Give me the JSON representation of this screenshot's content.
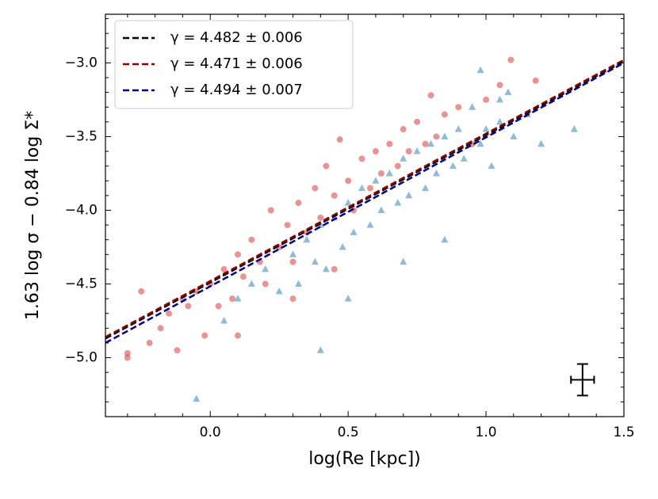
{
  "chart_data": {
    "type": "scatter",
    "xlabel": "log(Re [kpc])",
    "ylabel": "1.63 log σ − 0.84 log Σ*",
    "xlim": [
      -0.38,
      1.5
    ],
    "ylim": [
      -5.4,
      -2.67
    ],
    "xticks": [
      {
        "value": 0,
        "label": "0.0"
      },
      {
        "value": 0.5,
        "label": "0.5"
      },
      {
        "value": 1,
        "label": "1.0"
      },
      {
        "value": 1.5,
        "label": "1.5"
      }
    ],
    "yticks": [
      {
        "value": -3,
        "label": "−3.0"
      },
      {
        "value": -3.5,
        "label": "−3.5"
      },
      {
        "value": -4,
        "label": "−4.0"
      },
      {
        "value": -4.5,
        "label": "−4.5"
      },
      {
        "value": -5,
        "label": "−5.0"
      }
    ],
    "xminor": [
      -0.3,
      -0.2,
      -0.1,
      0.1,
      0.2,
      0.3,
      0.4,
      0.6,
      0.7,
      0.8,
      0.9,
      1.1,
      1.2,
      1.3,
      1.4
    ],
    "yminor": [
      -2.7,
      -2.8,
      -2.9,
      -3.1,
      -3.2,
      -3.3,
      -3.4,
      -3.6,
      -3.7,
      -3.8,
      -3.9,
      -4.1,
      -4.2,
      -4.3,
      -4.4,
      -4.6,
      -4.7,
      -4.8,
      -4.9,
      -5.1,
      -5.2,
      -5.3,
      -5.4
    ],
    "legend": "upper left",
    "series": [
      {
        "color": "#d62728",
        "marker": "circle",
        "x": [
          -0.3,
          -0.3,
          -0.25,
          -0.22,
          -0.18,
          -0.15,
          -0.12,
          -0.1,
          -0.08,
          -0.05,
          -0.02,
          0.0,
          0.03,
          0.05,
          0.08,
          0.1,
          0.12,
          0.15,
          0.18,
          0.2,
          0.22,
          0.25,
          0.28,
          0.3,
          0.32,
          0.35,
          0.38,
          0.4,
          0.42,
          0.45,
          0.47,
          0.5,
          0.52,
          0.55,
          0.58,
          0.6,
          0.62,
          0.65,
          0.68,
          0.7,
          0.72,
          0.75,
          0.78,
          0.8,
          0.82,
          0.85,
          0.9,
          0.95,
          1.0,
          1.05,
          1.09,
          1.18,
          0.3,
          0.45,
          0.1
        ],
        "values": [
          -5.0,
          -4.97,
          -4.55,
          -4.9,
          -4.8,
          -4.7,
          -4.95,
          -4.6,
          -4.65,
          -4.55,
          -4.85,
          -4.5,
          -4.65,
          -4.4,
          -4.6,
          -4.3,
          -4.45,
          -4.2,
          -4.35,
          -4.5,
          -4.0,
          -4.25,
          -4.1,
          -4.35,
          -3.95,
          -4.15,
          -3.85,
          -4.05,
          -3.7,
          -3.9,
          -3.52,
          -3.8,
          -4.0,
          -3.65,
          -3.85,
          -3.6,
          -3.75,
          -3.55,
          -3.7,
          -3.45,
          -3.6,
          -3.4,
          -3.55,
          -3.22,
          -3.5,
          -3.35,
          -3.3,
          -3.55,
          -3.25,
          -3.15,
          -2.98,
          -3.12,
          -4.6,
          -4.4,
          -4.85
        ]
      },
      {
        "color": "#1f77b4",
        "marker": "triangle",
        "x": [
          -0.05,
          0.05,
          0.1,
          0.15,
          0.2,
          0.25,
          0.3,
          0.32,
          0.35,
          0.38,
          0.4,
          0.42,
          0.45,
          0.48,
          0.5,
          0.52,
          0.55,
          0.58,
          0.6,
          0.62,
          0.65,
          0.68,
          0.7,
          0.72,
          0.75,
          0.78,
          0.8,
          0.82,
          0.85,
          0.88,
          0.9,
          0.92,
          0.95,
          0.98,
          1.0,
          1.02,
          1.05,
          1.08,
          1.1,
          1.15,
          1.2,
          1.32,
          0.98,
          1.05,
          0.7,
          0.85,
          0.5,
          0.4
        ],
        "values": [
          -5.28,
          -4.75,
          -4.6,
          -4.5,
          -4.4,
          -4.55,
          -4.3,
          -4.5,
          -4.2,
          -4.35,
          -4.1,
          -4.4,
          -4.05,
          -4.25,
          -3.95,
          -4.15,
          -3.85,
          -4.1,
          -3.8,
          -4.0,
          -3.75,
          -3.95,
          -3.65,
          -3.9,
          -3.6,
          -3.85,
          -3.55,
          -3.75,
          -3.5,
          -3.7,
          -3.45,
          -3.65,
          -3.3,
          -3.55,
          -3.45,
          -3.7,
          -3.4,
          -3.2,
          -3.5,
          -3.35,
          -3.55,
          -3.45,
          -3.05,
          -3.25,
          -4.35,
          -4.2,
          -4.6,
          -4.95
        ]
      }
    ],
    "fits": [
      {
        "name": "γ = 4.482 ± 0.006",
        "color": "#000000",
        "x": [
          -0.38,
          1.5
        ],
        "values": [
          -4.87,
          -2.99
        ]
      },
      {
        "name": "γ = 4.471 ± 0.006",
        "color": "#8b0000",
        "x": [
          -0.38,
          1.5
        ],
        "values": [
          -4.86,
          -2.98
        ]
      },
      {
        "name": "γ = 4.494 ± 0.007",
        "color": "#00008b",
        "x": [
          -0.38,
          1.5
        ],
        "values": [
          -4.9,
          -3.0
        ]
      }
    ],
    "error_bar": {
      "x": 1.35,
      "y": -5.15,
      "xerr": 0.042,
      "yerr": 0.107
    }
  }
}
